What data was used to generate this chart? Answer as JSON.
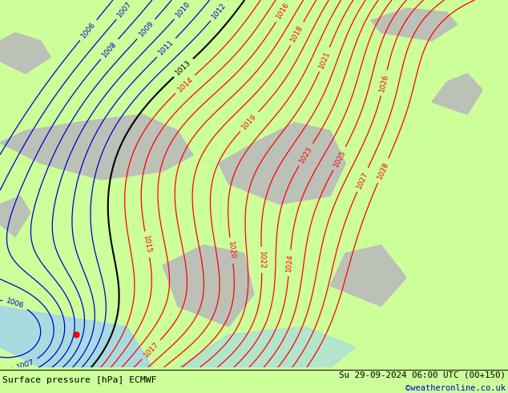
{
  "title_left": "Surface pressure [hPa] ECMWF",
  "title_right": "Su 29-09-2024 06:00 UTC (00+150)",
  "credit": "©weatheronline.co.uk",
  "bg_color": "#ccff99",
  "contour_color_red": "#ff0000",
  "contour_color_black": "#000000",
  "contour_color_blue": "#0000cc",
  "gray_color": "#bbbbbb",
  "water_color": "#99ccff",
  "credit_color": "#0000cc",
  "red_levels": [
    1014,
    1015,
    1016,
    1017,
    1018,
    1019,
    1020,
    1021,
    1022,
    1023,
    1024,
    1025,
    1026,
    1027,
    1028
  ],
  "blue_levels": [
    1006,
    1007,
    1008,
    1009,
    1010,
    1011,
    1012
  ],
  "black_levels": [
    1013
  ]
}
